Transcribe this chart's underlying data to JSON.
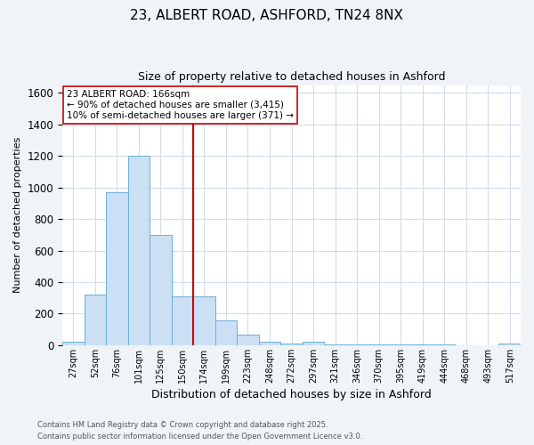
{
  "title_line1": "23, ALBERT ROAD, ASHFORD, TN24 8NX",
  "title_line2": "Size of property relative to detached houses in Ashford",
  "xlabel": "Distribution of detached houses by size in Ashford",
  "ylabel": "Number of detached properties",
  "categories": [
    "27sqm",
    "52sqm",
    "76sqm",
    "101sqm",
    "125sqm",
    "150sqm",
    "174sqm",
    "199sqm",
    "223sqm",
    "248sqm",
    "272sqm",
    "297sqm",
    "321sqm",
    "346sqm",
    "370sqm",
    "395sqm",
    "419sqm",
    "444sqm",
    "468sqm",
    "493sqm",
    "517sqm"
  ],
  "values": [
    20,
    320,
    970,
    1200,
    700,
    310,
    310,
    155,
    65,
    20,
    10,
    20,
    3,
    3,
    3,
    2,
    2,
    2,
    1,
    1,
    10
  ],
  "bar_color": "#cce0f5",
  "bar_edgecolor": "#6baed6",
  "vline_color": "#cc0000",
  "vline_x_index": 6,
  "ylim": [
    0,
    1650
  ],
  "yticks": [
    0,
    200,
    400,
    600,
    800,
    1000,
    1200,
    1400,
    1600
  ],
  "annotation_text": "23 ALBERT ROAD: 166sqm\n← 90% of detached houses are smaller (3,415)\n10% of semi-detached houses are larger (371) →",
  "annotation_box_facecolor": "#ffffff",
  "annotation_box_edgecolor": "#cc0000",
  "footer_line1": "Contains HM Land Registry data © Crown copyright and database right 2025.",
  "footer_line2": "Contains public sector information licensed under the Open Government Licence v3.0.",
  "plot_bg_color": "#ffffff",
  "fig_bg_color": "#f0f4f8",
  "grid_color": "#d0dce8",
  "title_fontsize": 11,
  "subtitle_fontsize": 9,
  "ylabel_fontsize": 8,
  "xlabel_fontsize": 9
}
